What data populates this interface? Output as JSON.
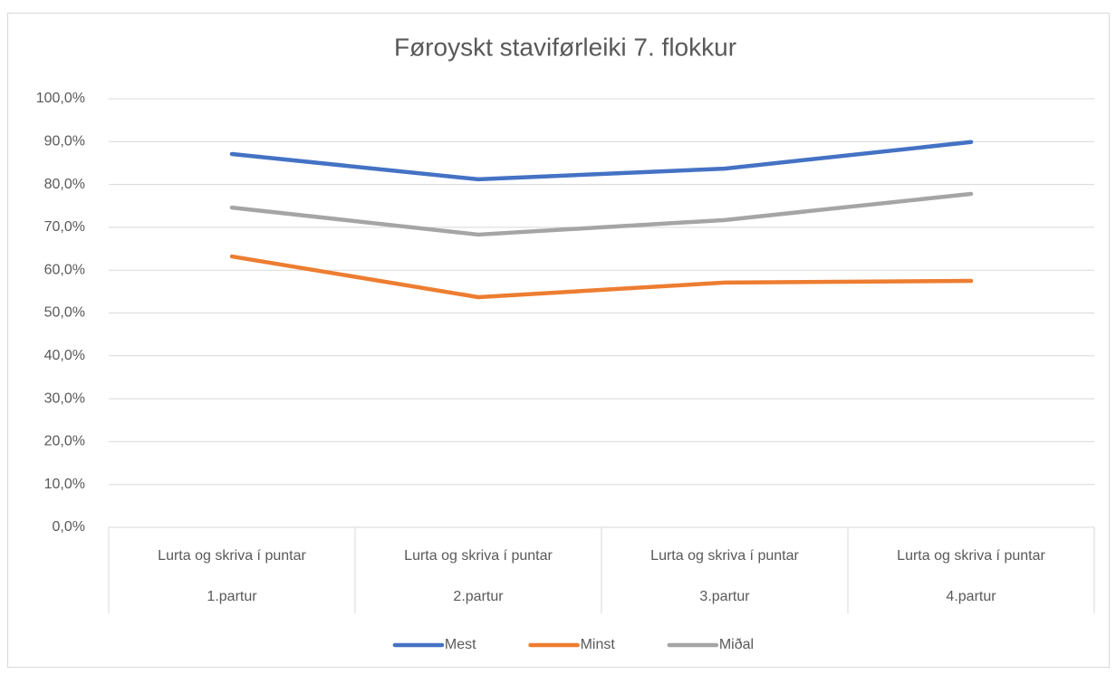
{
  "chart_data": {
    "type": "line",
    "title": "Føroyskt staviførleiki 7. flokkur",
    "categories": [
      [
        "Lurta og skriva í puntar",
        "1.partur"
      ],
      [
        "Lurta og skriva í puntar",
        "2.partur"
      ],
      [
        "Lurta og skriva í puntar",
        "3.partur"
      ],
      [
        "Lurta og skriva í puntar",
        "4.partur"
      ]
    ],
    "series": [
      {
        "name": "Mest",
        "color": "#4472c4",
        "values": [
          87.1,
          81.2,
          83.7,
          89.9
        ]
      },
      {
        "name": "Minst",
        "color": "#ed7d31",
        "values": [
          63.2,
          53.7,
          57.1,
          57.5
        ]
      },
      {
        "name": "Miðal",
        "color": "#a5a5a5",
        "values": [
          74.6,
          68.3,
          71.7,
          77.8
        ]
      }
    ],
    "ylim": [
      0,
      100
    ],
    "yticks": [
      {
        "value": 0,
        "label": "0,0%"
      },
      {
        "value": 10,
        "label": "10,0%"
      },
      {
        "value": 20,
        "label": "20,0%"
      },
      {
        "value": 30,
        "label": "30,0%"
      },
      {
        "value": 40,
        "label": "40,0%"
      },
      {
        "value": 50,
        "label": "50,0%"
      },
      {
        "value": 60,
        "label": "60,0%"
      },
      {
        "value": 70,
        "label": "70,0%"
      },
      {
        "value": 80,
        "label": "80,0%"
      },
      {
        "value": 90,
        "label": "90,0%"
      },
      {
        "value": 100,
        "label": "100,0%"
      }
    ],
    "grid": true,
    "legend": "bottom"
  }
}
